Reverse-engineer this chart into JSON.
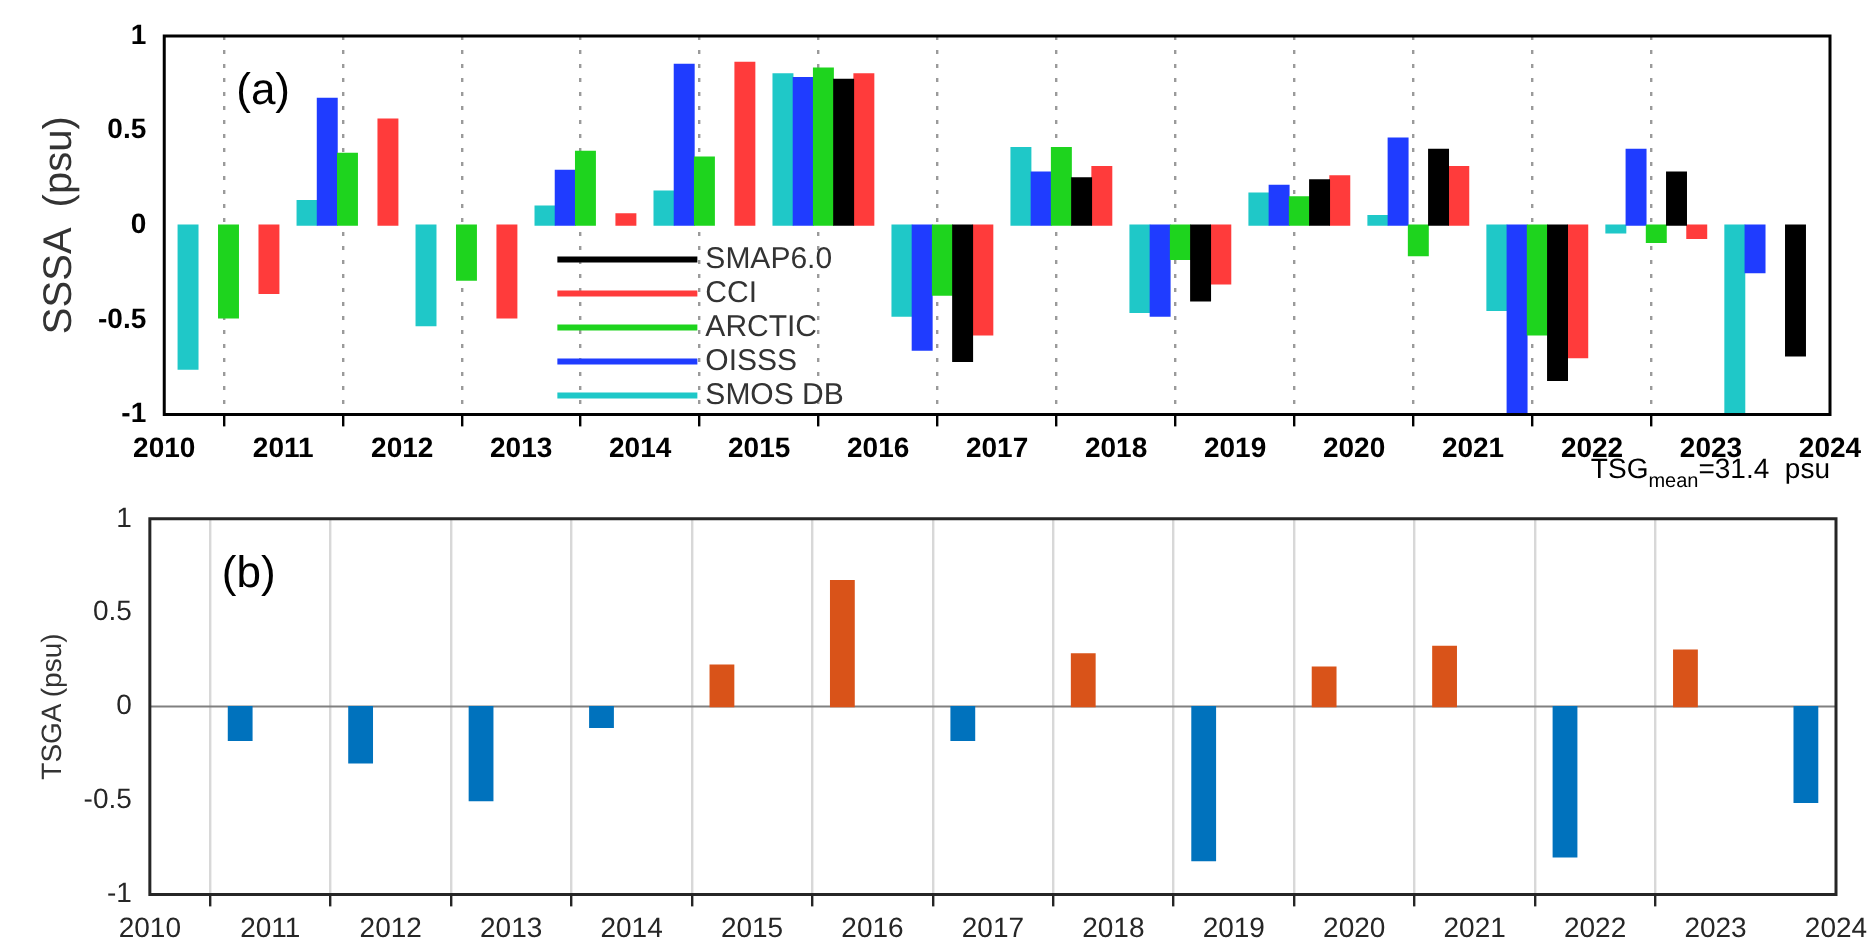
{
  "chart_data": [
    {
      "type": "bar",
      "ylabel": "SSSA  (psu)",
      "xlim": [
        2010,
        2024
      ],
      "xticks": [
        2010,
        2011,
        2012,
        2013,
        2014,
        2015,
        2016,
        2017,
        2018,
        2019,
        2020,
        2021,
        2022,
        2023,
        2024
      ],
      "ylim": [
        -1,
        1
      ],
      "yticks": [
        -1,
        -0.5,
        0,
        0.5,
        1
      ],
      "grid": "x",
      "legend": "bottom",
      "annotations": [
        "(a)",
        "TSG$_{mean}$=31.4  psu"
      ],
      "series": [
        {
          "name": "SMAP6.0",
          "color": "#000000",
          "x": [
            2015.71,
            2016.71,
            2017.71,
            2018.71,
            2019.71,
            2020.71,
            2021.71,
            2022.71,
            2023.71
          ],
          "values": [
            0.77,
            -0.72,
            0.25,
            -0.4,
            0.24,
            0.4,
            -0.82,
            0.28,
            -0.69
          ]
        },
        {
          "name": "CCI",
          "color": "#ff3b3b",
          "x": [
            2010.88,
            2011.88,
            2012.88,
            2013.88,
            2014.88,
            2015.88,
            2016.88,
            2017.88,
            2018.88,
            2019.88,
            2020.88,
            2021.88,
            2022.88
          ],
          "values": [
            -0.36,
            0.56,
            -0.49,
            0.06,
            0.86,
            0.8,
            -0.58,
            0.31,
            -0.31,
            0.26,
            0.31,
            -0.7,
            -0.07
          ]
        },
        {
          "name": "ARCTIC",
          "color": "#1ed41e",
          "x": [
            2010.54,
            2011.54,
            2012.54,
            2013.54,
            2014.54,
            2015.54,
            2016.54,
            2017.54,
            2018.54,
            2019.54,
            2020.54,
            2021.54,
            2022.54
          ],
          "values": [
            -0.49,
            0.38,
            -0.29,
            0.39,
            0.36,
            0.83,
            -0.37,
            0.41,
            -0.18,
            0.15,
            -0.16,
            -0.58,
            -0.09
          ]
        },
        {
          "name": "OISSS",
          "color": "#1f3cff",
          "x": [
            2011.37,
            2013.37,
            2014.37,
            2015.37,
            2016.37,
            2017.37,
            2018.37,
            2019.37,
            2020.37,
            2021.37,
            2022.37,
            2023.37
          ],
          "values": [
            0.67,
            0.29,
            0.85,
            0.78,
            -0.66,
            0.28,
            -0.48,
            0.21,
            0.46,
            -1,
            0.4,
            -0.25
          ]
        },
        {
          "name": "SMOS DB",
          "color": "#1fc8c8",
          "x": [
            2010.2,
            2011.2,
            2012.2,
            2013.2,
            2014.2,
            2015.2,
            2016.2,
            2017.2,
            2018.2,
            2019.2,
            2020.2,
            2021.2,
            2022.2,
            2023.2
          ],
          "values": [
            -0.76,
            0.13,
            -0.53,
            0.1,
            0.18,
            0.8,
            -0.48,
            0.41,
            -0.46,
            0.17,
            0.05,
            -0.45,
            -0.04,
            -1
          ]
        }
      ]
    },
    {
      "type": "bar",
      "ylabel": "TSGA (psu)",
      "xlim": [
        2010,
        2024
      ],
      "xticks": [
        2010,
        2011,
        2012,
        2013,
        2014,
        2015,
        2016,
        2017,
        2018,
        2019,
        2020,
        2021,
        2022,
        2023,
        2024
      ],
      "ylim": [
        -1,
        1
      ],
      "yticks": [
        -1,
        -0.5,
        0,
        0.5,
        1
      ],
      "grid": "x",
      "annotations": [
        "(b)"
      ],
      "ref_lines": [
        {
          "axis": "y",
          "value": 0,
          "color": "#808080"
        }
      ],
      "x": [
        2010.75,
        2011.75,
        2012.75,
        2013.75,
        2014.75,
        2015.75,
        2016.75,
        2017.75,
        2018.75,
        2019.75,
        2020.75,
        2021.75,
        2022.75,
        2023.75
      ],
      "values": [
        -0.18,
        -0.3,
        -0.5,
        -0.11,
        0.22,
        0.67,
        -0.18,
        0.28,
        -0.82,
        0.21,
        0.32,
        -0.8,
        0.3,
        -0.51
      ],
      "colors": [
        "#0072bd",
        "#0072bd",
        "#0072bd",
        "#0072bd",
        "#d95319",
        "#d95319",
        "#0072bd",
        "#d95319",
        "#0072bd",
        "#d95319",
        "#d95319",
        "#0072bd",
        "#d95319",
        "#0072bd"
      ]
    }
  ]
}
